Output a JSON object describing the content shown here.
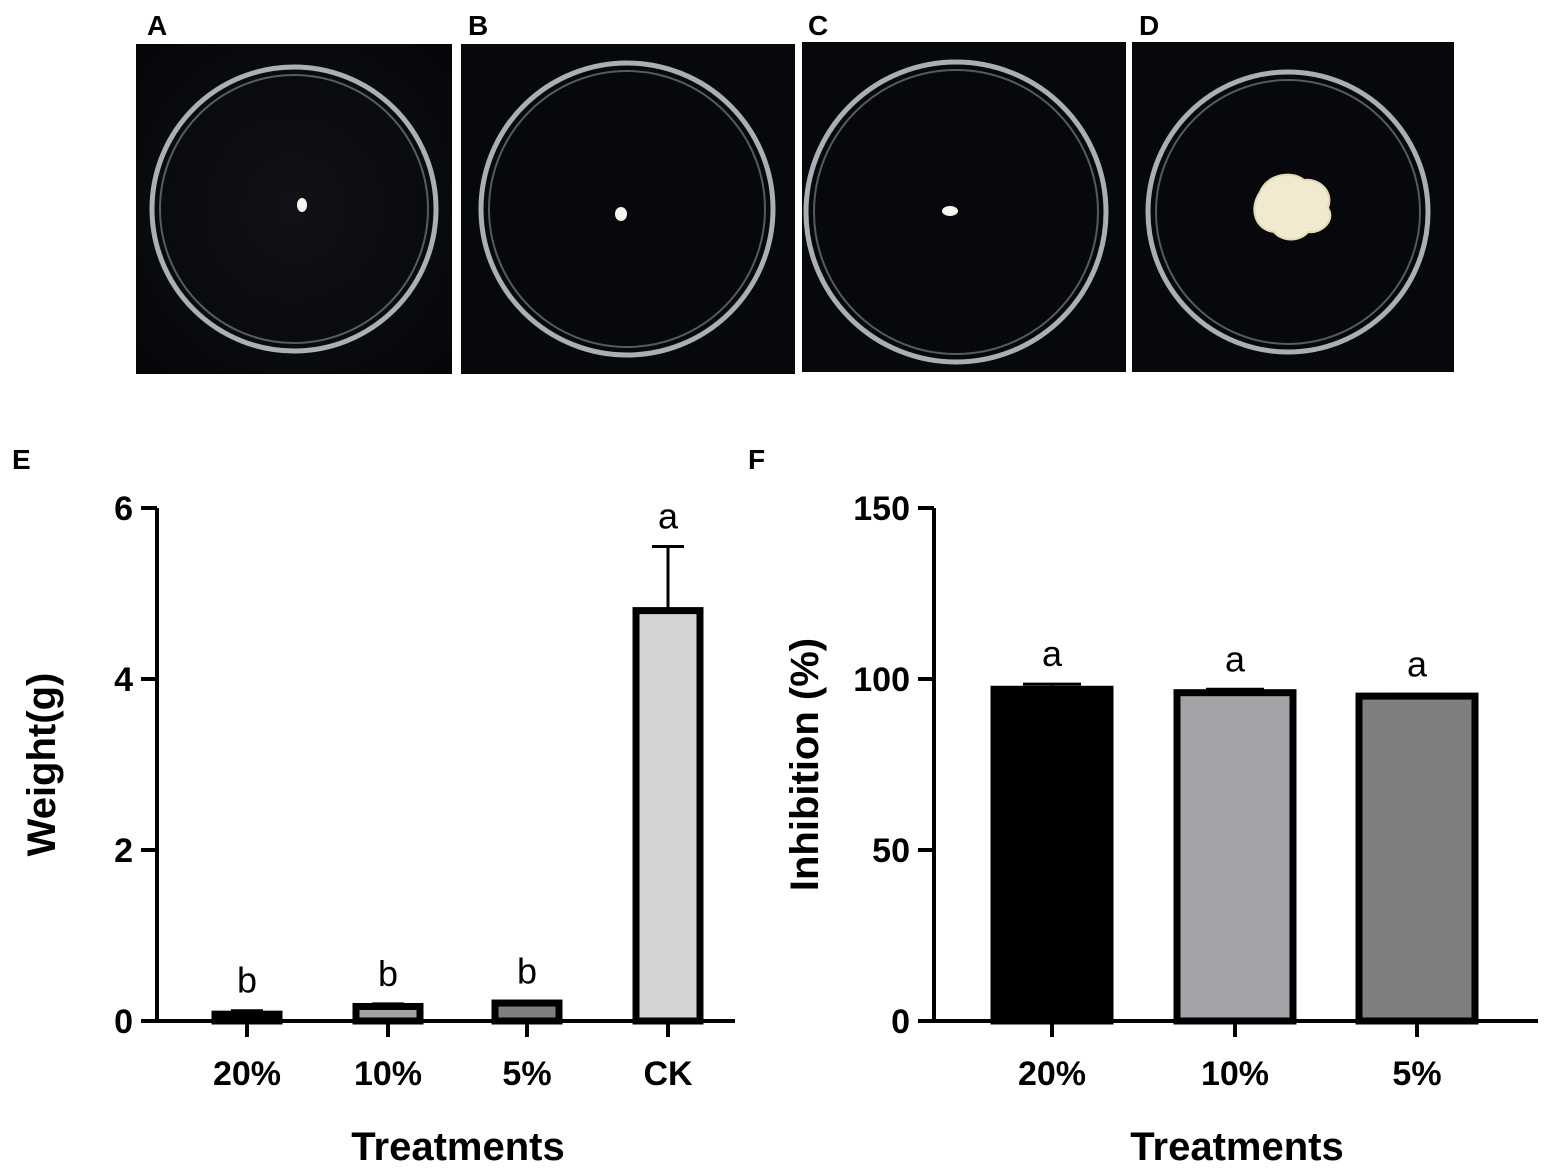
{
  "panel_labels": {
    "a": "A",
    "b": "B",
    "c": "C",
    "d": "D",
    "e": "E",
    "f": "F"
  },
  "photos": [
    {
      "label": "A",
      "subject": "petri dish with tiny white speck",
      "speck": "small"
    },
    {
      "label": "B",
      "subject": "petri dish with tiny white speck",
      "speck": "small"
    },
    {
      "label": "C",
      "subject": "petri dish with tiny white speck",
      "speck": "small"
    },
    {
      "label": "D",
      "subject": "petri dish with large cream-colored mass",
      "speck": "large"
    }
  ],
  "chart_data": [
    {
      "panel": "E",
      "type": "bar",
      "categories": [
        "20%",
        "10%",
        "5%",
        "CK"
      ],
      "values": [
        0.08,
        0.17,
        0.21,
        4.8
      ],
      "errors": [
        0.04,
        0.03,
        0.02,
        0.75
      ],
      "letters": [
        "b",
        "b",
        "b",
        "a"
      ],
      "colors": [
        "#000000",
        "#a3a3a7",
        "#7f7f7f",
        "#d4d4d4"
      ],
      "ylabel": "Weight(g)",
      "xlabel": "Treatments",
      "ylim": [
        0,
        6
      ],
      "yticks": [
        "0",
        "2",
        "4",
        "6"
      ],
      "yticks_values": [
        0,
        2,
        4,
        6
      ]
    },
    {
      "panel": "F",
      "type": "bar",
      "categories": [
        "20%",
        "10%",
        "5%"
      ],
      "values": [
        97,
        96,
        95
      ],
      "errors": [
        1.5,
        1.0,
        0.5
      ],
      "letters": [
        "a",
        "a",
        "a"
      ],
      "colors": [
        "#000000",
        "#a3a3a7",
        "#7f7f7f"
      ],
      "ylabel": "Inhibition (%)",
      "xlabel": "Treatments",
      "ylim": [
        0,
        150
      ],
      "yticks": [
        "0",
        "50",
        "100",
        "150"
      ],
      "yticks_values": [
        0,
        50,
        100,
        150
      ]
    }
  ]
}
